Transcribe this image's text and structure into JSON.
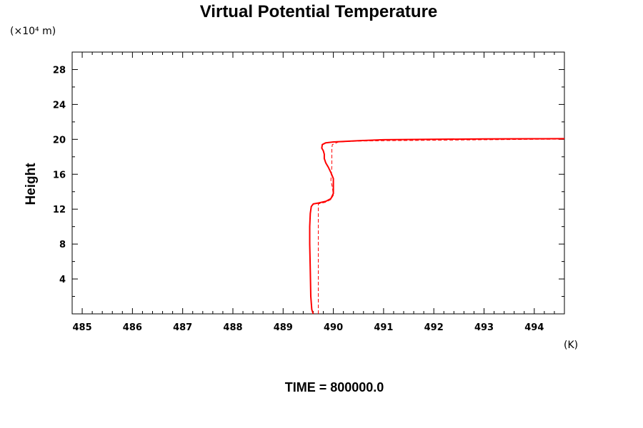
{
  "chart_data": {
    "type": "line",
    "title": "Virtual Potential Temperature",
    "ylabel": "Height",
    "y_unit_label": "(×10⁴ m)",
    "x_unit_label": "(K)",
    "footer": "TIME = 800000.0",
    "xlim": [
      484.8,
      494.6
    ],
    "ylim": [
      0,
      30
    ],
    "x_ticks": [
      485,
      486,
      487,
      488,
      489,
      490,
      491,
      492,
      493,
      494
    ],
    "y_ticks": [
      4,
      8,
      12,
      16,
      20,
      24,
      28
    ],
    "grid": false,
    "color": "#ff0000",
    "series": [
      {
        "style": "solid",
        "points": [
          [
            489.6,
            0
          ],
          [
            489.57,
            0.5
          ],
          [
            489.55,
            2
          ],
          [
            489.54,
            5
          ],
          [
            489.53,
            8
          ],
          [
            489.53,
            10
          ],
          [
            489.54,
            11.5
          ],
          [
            489.56,
            12.3
          ],
          [
            489.6,
            12.6
          ],
          [
            489.7,
            12.7
          ],
          [
            489.85,
            12.9
          ],
          [
            489.95,
            13.2
          ],
          [
            490.0,
            13.8
          ],
          [
            490.0,
            14.8
          ],
          [
            490.0,
            15.5
          ],
          [
            489.95,
            16.2
          ],
          [
            489.9,
            16.8
          ],
          [
            489.85,
            17.3
          ],
          [
            489.82,
            17.8
          ],
          [
            489.82,
            18.3
          ],
          [
            489.8,
            18.7
          ],
          [
            489.77,
            19.0
          ],
          [
            489.78,
            19.4
          ],
          [
            489.85,
            19.6
          ],
          [
            490.0,
            19.7
          ],
          [
            490.5,
            19.85
          ],
          [
            491.0,
            19.95
          ],
          [
            492.0,
            20.0
          ],
          [
            493.0,
            20.05
          ],
          [
            494.0,
            20.07
          ],
          [
            494.6,
            20.08
          ]
        ]
      },
      {
        "style": "dashed",
        "points": [
          [
            489.7,
            0
          ],
          [
            489.7,
            3
          ],
          [
            489.7,
            6
          ],
          [
            489.7,
            9
          ],
          [
            489.7,
            12.6
          ],
          [
            489.85,
            12.8
          ],
          [
            489.95,
            13.1
          ],
          [
            490.0,
            13.6
          ],
          [
            489.98,
            14.5
          ],
          [
            489.95,
            15.3
          ],
          [
            489.96,
            16.0
          ],
          [
            489.97,
            17.0
          ],
          [
            489.97,
            18.0
          ],
          [
            489.97,
            19.0
          ],
          [
            489.98,
            19.4
          ],
          [
            490.1,
            19.7
          ],
          [
            490.5,
            19.8
          ],
          [
            491.0,
            19.85
          ],
          [
            492.0,
            19.9
          ],
          [
            493.0,
            19.95
          ],
          [
            494.0,
            20.0
          ],
          [
            494.6,
            20.02
          ]
        ]
      }
    ]
  }
}
